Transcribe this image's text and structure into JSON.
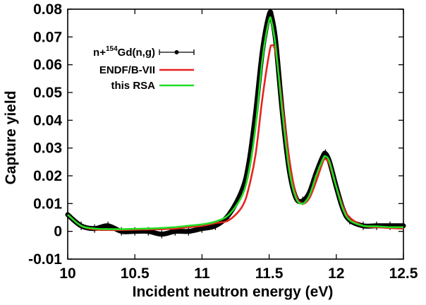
{
  "chart_data": {
    "type": "line",
    "xlabel": "Incident neutron energy (eV)",
    "ylabel": "Capture yield",
    "xlim": [
      10,
      12.5
    ],
    "ylim": [
      -0.01,
      0.08
    ],
    "x_ticks": [
      "10",
      "10.5",
      "11",
      "11.5",
      "12",
      "12.5"
    ],
    "y_ticks": [
      "-0.01",
      "0",
      "0.01",
      "0.02",
      "0.03",
      "0.04",
      "0.05",
      "0.06",
      "0.07",
      "0.08"
    ],
    "legend_position": "top-left",
    "grid": false,
    "series": [
      {
        "name": "n+154Gd(n,g)",
        "legend": {
          "prefix": "n+",
          "sup": "154",
          "suffix": "Gd(n,g)"
        },
        "style": "points-with-errorbars",
        "color": "#000000",
        "x": [
          10.0,
          10.1,
          10.2,
          10.3,
          10.4,
          10.5,
          10.6,
          10.7,
          10.8,
          10.9,
          11.0,
          11.1,
          11.2,
          11.3,
          11.35,
          11.4,
          11.45,
          11.5,
          11.52,
          11.55,
          11.6,
          11.65,
          11.7,
          11.75,
          11.8,
          11.85,
          11.9,
          11.92,
          11.95,
          12.0,
          12.05,
          12.1,
          12.2,
          12.3,
          12.4,
          12.5
        ],
        "y": [
          0.006,
          0.002,
          0.001,
          0.002,
          0.0,
          0.0,
          0.0,
          -0.001,
          0.0,
          0.0,
          0.001,
          0.002,
          0.006,
          0.015,
          0.025,
          0.043,
          0.065,
          0.078,
          0.077,
          0.068,
          0.042,
          0.022,
          0.012,
          0.011,
          0.014,
          0.021,
          0.027,
          0.028,
          0.025,
          0.016,
          0.008,
          0.004,
          0.002,
          0.002,
          0.002,
          0.002
        ]
      },
      {
        "name": "ENDF/B-VII",
        "style": "line",
        "color": "#e8221e",
        "x": [
          10.0,
          10.1,
          10.2,
          10.3,
          10.4,
          10.5,
          10.6,
          10.7,
          10.8,
          10.9,
          11.0,
          11.1,
          11.2,
          11.3,
          11.35,
          11.4,
          11.45,
          11.5,
          11.52,
          11.55,
          11.6,
          11.65,
          11.7,
          11.75,
          11.8,
          11.85,
          11.9,
          11.92,
          11.95,
          12.0,
          12.05,
          12.1,
          12.2,
          12.3,
          12.4,
          12.5
        ],
        "y": [
          0.006,
          0.002,
          0.0007,
          0.0005,
          0.0005,
          0.0006,
          0.0007,
          0.0008,
          0.001,
          0.0015,
          0.002,
          0.003,
          0.004,
          0.009,
          0.016,
          0.028,
          0.048,
          0.064,
          0.067,
          0.064,
          0.045,
          0.026,
          0.013,
          0.01,
          0.012,
          0.018,
          0.025,
          0.026,
          0.024,
          0.016,
          0.009,
          0.005,
          0.002,
          0.0015,
          0.0012,
          0.001
        ]
      },
      {
        "name": "this RSA",
        "style": "line",
        "color": "#22dd22",
        "x": [
          10.0,
          10.1,
          10.2,
          10.3,
          10.4,
          10.5,
          10.6,
          10.7,
          10.8,
          10.9,
          11.0,
          11.1,
          11.2,
          11.3,
          11.35,
          11.4,
          11.45,
          11.5,
          11.52,
          11.55,
          11.6,
          11.65,
          11.7,
          11.75,
          11.8,
          11.85,
          11.9,
          11.92,
          11.95,
          12.0,
          12.05,
          12.1,
          12.2,
          12.3,
          12.4,
          12.5
        ],
        "y": [
          0.006,
          0.002,
          0.001,
          0.0008,
          0.0008,
          0.0009,
          0.001,
          0.0012,
          0.0015,
          0.002,
          0.0025,
          0.0035,
          0.006,
          0.013,
          0.022,
          0.038,
          0.062,
          0.076,
          0.075,
          0.066,
          0.042,
          0.022,
          0.012,
          0.01,
          0.013,
          0.02,
          0.026,
          0.027,
          0.025,
          0.016,
          0.008,
          0.004,
          0.002,
          0.0018,
          0.0015,
          0.0015
        ]
      }
    ]
  }
}
